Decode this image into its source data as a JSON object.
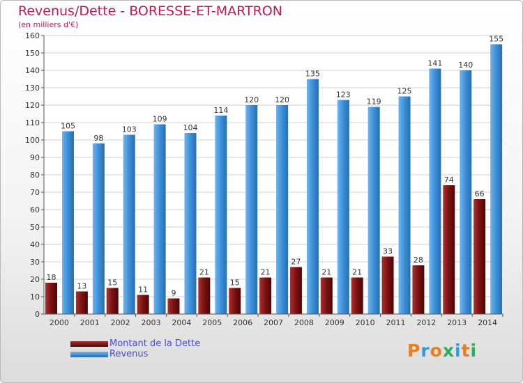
{
  "chart_data": {
    "type": "bar",
    "title": "Revenus/Dette - BORESSE-ET-MARTRON",
    "subtitle": "(en milliers d'€)",
    "categories": [
      "2000",
      "2001",
      "2002",
      "2003",
      "2004",
      "2005",
      "2006",
      "2007",
      "2008",
      "2009",
      "2010",
      "2011",
      "2012",
      "2013",
      "2014"
    ],
    "series": [
      {
        "name": "Montant de la Dette",
        "color": "#7a1212",
        "values": [
          18,
          13,
          15,
          11,
          9,
          21,
          15,
          21,
          27,
          21,
          21,
          33,
          28,
          74,
          66
        ]
      },
      {
        "name": "Revenus",
        "color": "#3d8fd6",
        "values": [
          105,
          98,
          103,
          109,
          104,
          114,
          120,
          120,
          135,
          123,
          119,
          125,
          141,
          140,
          155
        ]
      }
    ],
    "ylim": [
      0,
      160
    ],
    "yticks": [
      0,
      10,
      20,
      30,
      40,
      50,
      60,
      70,
      80,
      90,
      100,
      110,
      120,
      130,
      140,
      150,
      160
    ],
    "grid": true,
    "legend_position": "bottom-left"
  },
  "logo": {
    "text": "Proxiti",
    "colors": [
      "#e67e22",
      "#3498db",
      "#e67e22",
      "#27ae60",
      "#3498db",
      "#e67e22",
      "#27ae60"
    ]
  }
}
